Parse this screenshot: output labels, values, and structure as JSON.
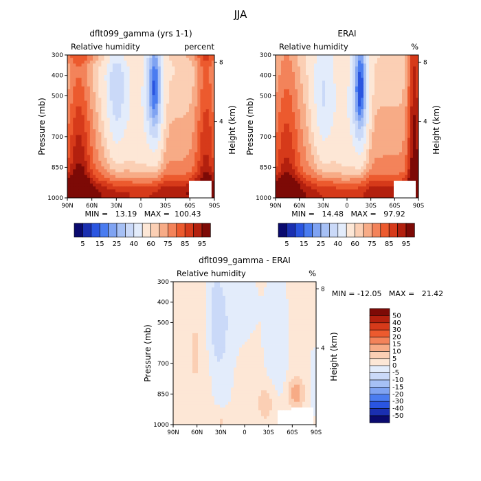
{
  "chart_data": {
    "type": "heatmap",
    "title": "JJA",
    "panels": [
      {
        "id": "model",
        "title": "dflt099_gamma (yrs 1-1)",
        "left_label": "Relative humidity",
        "right_label": "percent",
        "ylabel": "Pressure (mb)",
        "y2label": "Height (km)",
        "x_ticks": [
          "90N",
          "60N",
          "30N",
          "0",
          "30S",
          "60S",
          "90S"
        ],
        "y_ticks": [
          "300",
          "400",
          "500",
          "700",
          "850",
          "1000"
        ],
        "y2_ticks": [
          "8",
          "4"
        ],
        "stats": "MIN =   13.19   MAX =  100.43",
        "levels": [
          5,
          10,
          15,
          20,
          25,
          30,
          40,
          50,
          60,
          65,
          70,
          75,
          80,
          85,
          90,
          95
        ]
      },
      {
        "id": "erai",
        "title": "ERAI",
        "left_label": "Relative humidity",
        "right_label": "%",
        "ylabel": "Pressure (mb)",
        "y2label": "Height (km)",
        "x_ticks": [
          "90N",
          "60N",
          "30N",
          "0",
          "30S",
          "60S",
          "90S"
        ],
        "y_ticks": [
          "300",
          "400",
          "500",
          "700",
          "850",
          "1000"
        ],
        "y2_ticks": [
          "8",
          "4"
        ],
        "stats": "MIN =   14.48   MAX =   97.92",
        "levels": [
          5,
          10,
          15,
          20,
          25,
          30,
          40,
          50,
          60,
          65,
          70,
          75,
          80,
          85,
          90,
          95
        ]
      },
      {
        "id": "diff",
        "title": "dflt099_gamma - ERAI",
        "left_label": "Relative humidity",
        "right_label": "%",
        "ylabel": "Pressure (mb)",
        "y2label": "Height (km)",
        "x_ticks": [
          "90N",
          "60N",
          "30N",
          "0",
          "30S",
          "60S",
          "90S"
        ],
        "y_ticks": [
          "300",
          "400",
          "500",
          "700",
          "850",
          "1000"
        ],
        "y2_ticks": [
          "8",
          "4"
        ],
        "stats": "MIN = -12.05   MAX =   21.42",
        "levels": [
          -50,
          -40,
          -30,
          -20,
          -15,
          -10,
          -5,
          0,
          5,
          10,
          15,
          20,
          30,
          40,
          50
        ]
      }
    ],
    "colorbar_main": {
      "labels": [
        "5",
        "15",
        "25",
        "40",
        "60",
        "75",
        "85",
        "95"
      ],
      "colors": [
        "#0a0a6e",
        "#1a2fb0",
        "#2a55e0",
        "#4a7cf0",
        "#7fa3f2",
        "#a6c0f5",
        "#cad9f8",
        "#e3ecfb",
        "#fde7d6",
        "#fbcfb4",
        "#f7ab86",
        "#f3835a",
        "#ec5a2e",
        "#d63a1a",
        "#b3200e",
        "#7d0a06"
      ]
    },
    "colorbar_diff": {
      "labels": [
        "50",
        "40",
        "30",
        "20",
        "15",
        "10",
        "5",
        "0",
        "-5",
        "-10",
        "-15",
        "-20",
        "-30",
        "-40",
        "-50"
      ],
      "colors": [
        "#7d0a06",
        "#b3200e",
        "#d63a1a",
        "#ec5a2e",
        "#f3835a",
        "#f7ab86",
        "#fbcfb4",
        "#fde7d6",
        "#e3ecfb",
        "#cad9f8",
        "#a6c0f5",
        "#7fa3f2",
        "#4a7cf0",
        "#2a55e0",
        "#1a2fb0",
        "#0a0a6e"
      ]
    }
  }
}
